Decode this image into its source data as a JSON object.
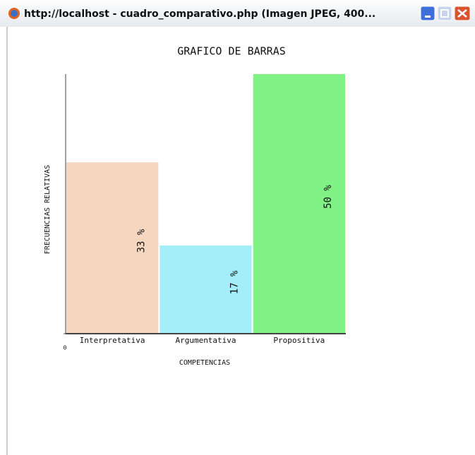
{
  "window": {
    "title": "http://localhost - cuadro_comparativo.php (Imagen JPEG, 400..."
  },
  "chart_data": {
    "type": "bar",
    "title": "GRAFICO DE BARRAS",
    "x_label": "COMPETENCIAS",
    "y_label": "FRECUENCIAS RELATIVAS",
    "categories": [
      "Interpretativa",
      "Argumentativa",
      "Propositiva"
    ],
    "values": [
      33,
      17,
      50
    ],
    "value_labels": [
      "33 %",
      "17 %",
      "50 %"
    ],
    "colors": [
      "#f5d6bf",
      "#a3eef8",
      "#80f184"
    ],
    "ylim": [
      0,
      50
    ],
    "yticks": [
      0
    ]
  }
}
